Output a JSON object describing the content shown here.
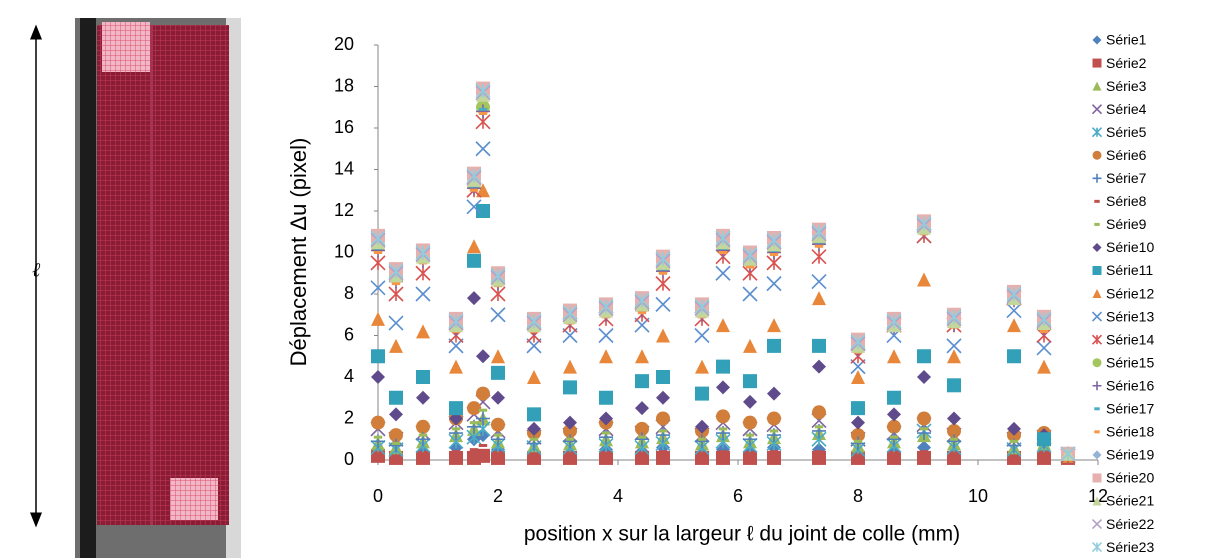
{
  "side_label": "ℓ",
  "chart_data": {
    "type": "scatter",
    "x_label": "position x  sur la largeur ℓ du joint de colle (mm)",
    "y_label": "Déplacement  Δu (pixel)",
    "xlim": [
      0,
      12
    ],
    "xticks": [
      0,
      2,
      4,
      6,
      8,
      10,
      12
    ],
    "ylim": [
      0,
      20
    ],
    "yticks": [
      0,
      2,
      4,
      6,
      8,
      10,
      12,
      14,
      16,
      18,
      20
    ],
    "legend": "right",
    "x": [
      0,
      0.3,
      0.75,
      1.3,
      1.6,
      1.75,
      2.0,
      2.6,
      3.2,
      3.8,
      4.4,
      4.75,
      5.4,
      5.75,
      6.2,
      6.6,
      7.35,
      8.0,
      8.6,
      9.1,
      9.6,
      10.6,
      11.1,
      11.5
    ],
    "series": [
      {
        "name": "Série1",
        "color": "#4F81BD",
        "marker": "diamond",
        "values": [
          0.5,
          0.3,
          0.4,
          0.6,
          1.0,
          1.2,
          0.5,
          0.4,
          0.3,
          0.5,
          0.4,
          0.6,
          0.3,
          0.5,
          0.4,
          0.6,
          0.5,
          0.3,
          0.4,
          0.6,
          0.3,
          0.2,
          0.4,
          0.2
        ]
      },
      {
        "name": "Série2",
        "color": "#C0504D",
        "marker": "square",
        "values": [
          0.2,
          0.1,
          0.1,
          0.1,
          0.1,
          0.2,
          0.1,
          0.1,
          0.1,
          0.1,
          0.1,
          0.1,
          0.1,
          0.1,
          0.1,
          0.1,
          0.1,
          0.1,
          0.1,
          0.1,
          0.1,
          0.1,
          0.1,
          0.1
        ]
      },
      {
        "name": "Série3",
        "color": "#9BBB59",
        "marker": "triangle",
        "values": [
          0.8,
          0.6,
          0.9,
          1.2,
          1.5,
          2.0,
          0.9,
          0.7,
          0.8,
          1.0,
          0.9,
          1.1,
          0.8,
          1.2,
          0.9,
          1.1,
          1.3,
          0.7,
          0.9,
          1.2,
          0.8,
          0.6,
          0.8,
          0.2
        ]
      },
      {
        "name": "Série4",
        "color": "#8064A2",
        "marker": "x",
        "values": [
          1.5,
          1.0,
          1.3,
          1.8,
          2.2,
          2.8,
          1.4,
          1.1,
          1.2,
          1.5,
          1.3,
          1.6,
          1.2,
          1.8,
          1.5,
          1.7,
          1.9,
          1.0,
          1.3,
          1.7,
          1.2,
          1.0,
          1.1,
          0.2
        ]
      },
      {
        "name": "Série5",
        "color": "#4BACC6",
        "marker": "star",
        "values": [
          0.6,
          0.5,
          0.7,
          0.9,
          1.1,
          1.5,
          0.7,
          0.6,
          0.6,
          0.7,
          0.6,
          0.8,
          0.6,
          0.9,
          0.7,
          0.8,
          1.0,
          0.5,
          0.7,
          1.4,
          0.6,
          0.5,
          0.7,
          0.2
        ]
      },
      {
        "name": "Série6",
        "color": "#D07E3A",
        "marker": "circle",
        "values": [
          1.8,
          1.2,
          1.6,
          2.0,
          2.5,
          3.2,
          1.7,
          1.3,
          1.4,
          1.8,
          1.5,
          2.0,
          1.4,
          2.1,
          1.8,
          2.0,
          2.3,
          1.2,
          1.6,
          2.0,
          1.4,
          1.2,
          1.3,
          0.2
        ]
      },
      {
        "name": "Série7",
        "color": "#4F81BD",
        "marker": "plus",
        "values": [
          0.9,
          0.7,
          1.0,
          1.3,
          1.6,
          2.0,
          1.0,
          0.8,
          0.9,
          1.1,
          1.0,
          1.2,
          0.9,
          1.3,
          1.0,
          1.2,
          1.4,
          0.8,
          1.0,
          1.3,
          0.9,
          0.7,
          0.9,
          0.2
        ]
      },
      {
        "name": "Série8",
        "color": "#C0504D",
        "marker": "dash",
        "values": [
          0.3,
          0.2,
          0.3,
          0.4,
          0.5,
          0.7,
          0.3,
          0.3,
          0.3,
          0.3,
          0.3,
          0.4,
          0.3,
          0.4,
          0.3,
          0.4,
          0.4,
          0.2,
          0.3,
          0.4,
          0.3,
          0.2,
          0.3,
          0.1
        ]
      },
      {
        "name": "Série9",
        "color": "#9BBB59",
        "marker": "dash",
        "values": [
          1.1,
          0.8,
          1.2,
          1.5,
          1.8,
          2.4,
          1.2,
          1.0,
          1.0,
          1.3,
          1.1,
          1.4,
          1.0,
          1.5,
          1.2,
          1.4,
          1.6,
          0.9,
          1.1,
          1.5,
          1.0,
          0.9,
          1.0,
          0.2
        ]
      },
      {
        "name": "Série10",
        "color": "#5F4B8B",
        "marker": "diamond",
        "values": [
          4.0,
          2.2,
          3.0,
          2.0,
          7.8,
          5.0,
          3.0,
          1.5,
          1.8,
          2.0,
          2.5,
          3.0,
          1.6,
          3.5,
          2.8,
          3.2,
          4.5,
          1.8,
          2.2,
          4.0,
          2.0,
          1.5,
          1.2,
          0.2
        ]
      },
      {
        "name": "Série11",
        "color": "#31A0B8",
        "marker": "square",
        "values": [
          5.0,
          3.0,
          4.0,
          2.5,
          9.6,
          12.0,
          4.2,
          2.2,
          3.5,
          3.0,
          3.8,
          4.0,
          3.2,
          4.5,
          3.8,
          5.5,
          5.5,
          2.5,
          3.0,
          5.0,
          3.6,
          5.0,
          1.0,
          0.2
        ]
      },
      {
        "name": "Série12",
        "color": "#E8863A",
        "marker": "triangle",
        "values": [
          6.8,
          5.5,
          6.2,
          4.5,
          10.3,
          13.0,
          5.0,
          4.0,
          4.5,
          5.0,
          5.0,
          6.0,
          4.5,
          6.5,
          5.5,
          6.5,
          7.8,
          4.0,
          5.0,
          8.7,
          5.0,
          6.5,
          4.5,
          0.2
        ]
      },
      {
        "name": "Série13",
        "color": "#5B8FD0",
        "marker": "x",
        "values": [
          8.3,
          6.6,
          8.0,
          5.5,
          12.2,
          15.0,
          7.0,
          5.5,
          6.0,
          6.0,
          6.5,
          7.5,
          6.0,
          9.0,
          8.0,
          8.5,
          8.6,
          4.5,
          6.0,
          10.8,
          5.5,
          7.2,
          5.4,
          0.2
        ]
      },
      {
        "name": "Série14",
        "color": "#D9524F",
        "marker": "star",
        "values": [
          9.5,
          8.0,
          9.0,
          6.0,
          13.0,
          16.3,
          8.0,
          6.0,
          6.5,
          6.8,
          7.0,
          8.5,
          6.8,
          9.8,
          9.0,
          9.5,
          9.8,
          5.0,
          6.5,
          10.8,
          6.5,
          7.8,
          6.0,
          0.2
        ]
      },
      {
        "name": "Série15",
        "color": "#A5C65F",
        "marker": "circle",
        "values": [
          10.3,
          8.8,
          9.8,
          6.5,
          13.3,
          17.0,
          8.7,
          6.5,
          6.9,
          7.2,
          7.4,
          9.3,
          7.2,
          10.3,
          9.6,
          10.2,
          10.6,
          5.5,
          6.6,
          11.2,
          6.7,
          7.9,
          6.5,
          0.3
        ]
      },
      {
        "name": "Série16",
        "color": "#8064A2",
        "marker": "plus",
        "values": [
          10.1,
          8.6,
          9.6,
          6.3,
          13.1,
          16.8,
          8.5,
          6.3,
          6.7,
          7.0,
          7.2,
          9.1,
          7.0,
          10.1,
          9.4,
          10.0,
          10.4,
          5.3,
          6.4,
          11.0,
          6.5,
          7.7,
          6.3,
          0.3
        ]
      },
      {
        "name": "Série17",
        "color": "#4BACC6",
        "marker": "dash",
        "values": [
          10.2,
          8.7,
          9.7,
          6.4,
          13.2,
          16.9,
          8.6,
          6.4,
          6.8,
          7.1,
          7.3,
          9.2,
          7.1,
          10.2,
          9.5,
          10.1,
          10.5,
          5.4,
          6.5,
          11.1,
          6.6,
          7.8,
          6.4,
          0.3
        ]
      },
      {
        "name": "Série18",
        "color": "#F79646",
        "marker": "dash",
        "values": [
          10.0,
          8.5,
          9.5,
          6.2,
          13.0,
          16.7,
          8.4,
          6.2,
          6.6,
          6.9,
          7.1,
          9.0,
          6.9,
          10.0,
          9.3,
          9.9,
          10.3,
          5.2,
          6.3,
          10.9,
          6.4,
          7.6,
          6.2,
          0.3
        ]
      },
      {
        "name": "Série19",
        "color": "#95B3D7",
        "marker": "diamond",
        "values": [
          10.7,
          9.1,
          10.0,
          6.7,
          13.7,
          17.8,
          8.9,
          6.7,
          7.1,
          7.4,
          7.7,
          9.7,
          7.4,
          10.7,
          9.9,
          10.6,
          11.0,
          5.7,
          6.7,
          11.4,
          6.9,
          8.0,
          6.8,
          0.3
        ]
      },
      {
        "name": "Série20",
        "color": "#E6B0AE",
        "marker": "square",
        "values": [
          10.8,
          9.2,
          10.1,
          6.8,
          13.8,
          17.9,
          9.0,
          6.8,
          7.2,
          7.5,
          7.8,
          9.8,
          7.5,
          10.8,
          10.0,
          10.7,
          11.1,
          5.8,
          6.8,
          11.5,
          7.0,
          8.1,
          6.9,
          0.3
        ]
      },
      {
        "name": "Série21",
        "color": "#C3D69B",
        "marker": "triangle",
        "values": [
          10.5,
          8.9,
          9.8,
          6.5,
          13.5,
          17.6,
          8.7,
          6.5,
          6.9,
          7.2,
          7.5,
          9.5,
          7.2,
          10.5,
          9.7,
          10.4,
          10.8,
          5.5,
          6.5,
          11.2,
          6.7,
          7.8,
          6.6,
          0.3
        ]
      },
      {
        "name": "Série22",
        "color": "#B3A2C7",
        "marker": "x",
        "values": [
          10.6,
          9.0,
          9.9,
          6.6,
          13.6,
          17.7,
          8.8,
          6.6,
          7.0,
          7.3,
          7.6,
          9.6,
          7.3,
          10.6,
          9.8,
          10.5,
          10.9,
          5.6,
          6.6,
          11.3,
          6.8,
          7.9,
          6.7,
          0.3
        ]
      },
      {
        "name": "Série23",
        "color": "#93CDDD",
        "marker": "star",
        "values": [
          10.7,
          9.1,
          10.0,
          6.7,
          13.7,
          17.8,
          8.9,
          6.7,
          7.1,
          7.4,
          7.7,
          9.7,
          7.4,
          10.7,
          9.9,
          10.6,
          11.0,
          5.7,
          6.7,
          11.4,
          6.9,
          8.0,
          6.8,
          0.3
        ]
      }
    ]
  }
}
